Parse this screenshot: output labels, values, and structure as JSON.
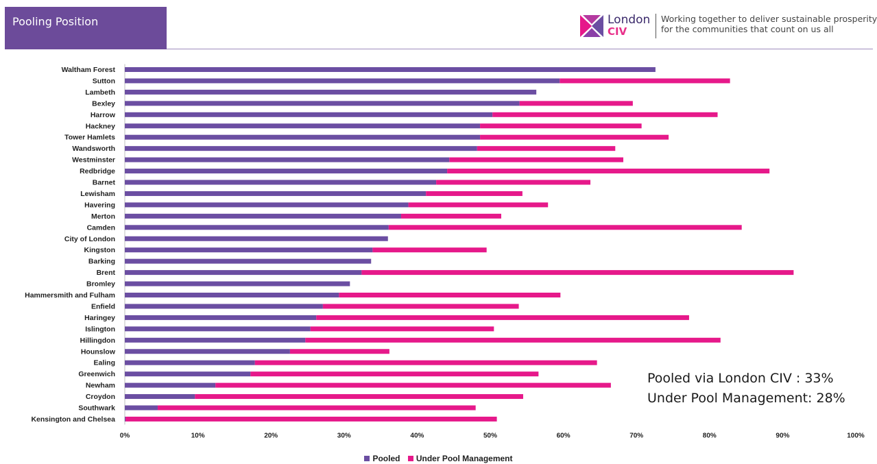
{
  "header": {
    "title": "Pooling Position",
    "logo_name": "London",
    "logo_sub": "CIV",
    "tagline_line1": "Working together to deliver sustainable prosperity",
    "tagline_line2": "for the communities that count on us all"
  },
  "colors": {
    "pooled": "#6b4ea2",
    "under_pool_management": "#e6198a",
    "title_bg": "#6c4b9a"
  },
  "summary": {
    "line1": "Pooled via London CIV : 33%",
    "line2": "Under Pool Management: 28%"
  },
  "legend": {
    "pooled": "Pooled",
    "under": "Under Pool Management"
  },
  "chart_data": {
    "type": "bar",
    "orientation": "horizontal",
    "stacked": true,
    "categories": [
      "Waltham Forest",
      "Sutton",
      "Lambeth",
      "Bexley",
      "Harrow",
      "Hackney",
      "Tower Hamlets",
      "Wandsworth",
      "Westminster",
      "Redbridge",
      "Barnet",
      "Lewisham",
      "Havering",
      "Merton",
      "Camden",
      "City of London",
      "Kingston",
      "Barking",
      "Brent",
      "Bromley",
      "Hammersmith and Fulham",
      "Enfield",
      "Haringey",
      "Islington",
      "Hillingdon",
      "Hounslow",
      "Ealing",
      "Greenwich",
      "Newham",
      "Croydon",
      "Southwark",
      "Kensington and Chelsea"
    ],
    "series": [
      {
        "name": "Pooled",
        "values": [
          72.6,
          59.5,
          56.3,
          54.0,
          50.3,
          48.6,
          48.6,
          48.2,
          44.4,
          44.1,
          42.6,
          41.2,
          38.8,
          37.8,
          36.1,
          36.0,
          33.9,
          33.7,
          32.4,
          30.8,
          29.3,
          27.1,
          26.2,
          25.4,
          24.7,
          22.6,
          17.8,
          17.2,
          12.4,
          9.6,
          4.5,
          0.1
        ]
      },
      {
        "name": "Under Pool Management",
        "values": [
          0.0,
          23.3,
          0.0,
          15.5,
          30.8,
          22.1,
          25.8,
          18.9,
          23.8,
          44.1,
          21.1,
          13.2,
          19.1,
          13.7,
          48.3,
          0.0,
          15.6,
          0.0,
          59.1,
          0.0,
          30.3,
          26.8,
          51.0,
          25.1,
          56.8,
          13.6,
          46.8,
          39.4,
          54.1,
          44.9,
          43.5,
          50.8
        ]
      }
    ],
    "xlim": [
      0,
      100
    ],
    "x_ticks": [
      "0%",
      "10%",
      "20%",
      "30%",
      "40%",
      "50%",
      "60%",
      "70%",
      "80%",
      "90%",
      "100%"
    ],
    "xlabel": "",
    "ylabel": "",
    "legend_position": "bottom",
    "grid": false
  }
}
